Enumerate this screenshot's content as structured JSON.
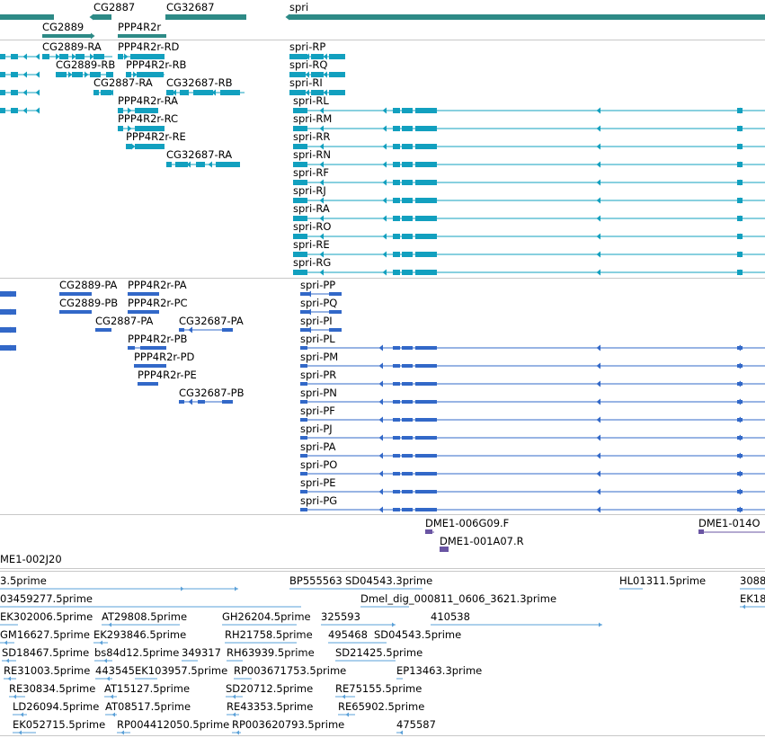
{
  "colors": {
    "gene": "#2d8a86",
    "transcript": "#12a0bf",
    "protein": "#3268c8",
    "clone": "#6a55a3",
    "est": "#5aa0d8",
    "separator": "#c8c8c8"
  },
  "tracks": [
    {
      "name": "genes",
      "items": [
        {
          "label": "CG2889",
          "color": "gene"
        },
        {
          "label": "CG2887",
          "color": "gene"
        },
        {
          "label": "PPP4R2r",
          "color": "gene"
        },
        {
          "label": "CG32687",
          "color": "gene"
        },
        {
          "label": "spri",
          "color": "gene"
        }
      ]
    },
    {
      "name": "transcripts",
      "items": [
        {
          "label": "CG2889-RA"
        },
        {
          "label": "CG2889-RB"
        },
        {
          "label": "CG2887-RA"
        },
        {
          "label": "PPP4R2r-RD"
        },
        {
          "label": "PPP4R2r-RB"
        },
        {
          "label": "PPP4R2r-RA"
        },
        {
          "label": "PPP4R2r-RC"
        },
        {
          "label": "PPP4R2r-RE"
        },
        {
          "label": "CG32687-RB"
        },
        {
          "label": "CG32687-RA"
        },
        {
          "label": "spri-RP"
        },
        {
          "label": "spri-RQ"
        },
        {
          "label": "spri-RI"
        },
        {
          "label": "spri-RL"
        },
        {
          "label": "spri-RM"
        },
        {
          "label": "spri-RR"
        },
        {
          "label": "spri-RN"
        },
        {
          "label": "spri-RF"
        },
        {
          "label": "spri-RJ"
        },
        {
          "label": "spri-RA"
        },
        {
          "label": "spri-RO"
        },
        {
          "label": "spri-RE"
        },
        {
          "label": "spri-RG"
        }
      ]
    },
    {
      "name": "proteins",
      "items": [
        {
          "label": "CG2889-PA"
        },
        {
          "label": "CG2889-PB"
        },
        {
          "label": "CG2887-PA"
        },
        {
          "label": "PPP4R2r-PA"
        },
        {
          "label": "PPP4R2r-PC"
        },
        {
          "label": "PPP4R2r-PB"
        },
        {
          "label": "PPP4R2r-PD"
        },
        {
          "label": "PPP4R2r-PE"
        },
        {
          "label": "CG32687-PA"
        },
        {
          "label": "CG32687-PB"
        },
        {
          "label": "spri-PP"
        },
        {
          "label": "spri-PQ"
        },
        {
          "label": "spri-PI"
        },
        {
          "label": "spri-PL"
        },
        {
          "label": "spri-PM"
        },
        {
          "label": "spri-PR"
        },
        {
          "label": "spri-PN"
        },
        {
          "label": "spri-PF"
        },
        {
          "label": "spri-PJ"
        },
        {
          "label": "spri-PA"
        },
        {
          "label": "spri-PO"
        },
        {
          "label": "spri-PE"
        },
        {
          "label": "spri-PG"
        }
      ]
    },
    {
      "name": "clones",
      "items": [
        {
          "label": "DME1-006G09.F"
        },
        {
          "label": "DME1-014O"
        },
        {
          "label": "DME1-001A07.R"
        },
        {
          "label": "ME1-002J20"
        }
      ]
    },
    {
      "name": "ests",
      "items": [
        {
          "label": "3.5prime"
        },
        {
          "label": "BP555563"
        },
        {
          "label": "SD04543.3prime"
        },
        {
          "label": "HL01311.5prime"
        },
        {
          "label": "3088"
        },
        {
          "label": "03459277.5prime"
        },
        {
          "label": "Dmel_dig_000811_0606_3621.3prime"
        },
        {
          "label": "EK18"
        },
        {
          "label": "EK302006.5prime"
        },
        {
          "label": "AT29808.5prime"
        },
        {
          "label": "GH26204.5prime"
        },
        {
          "label": "325593"
        },
        {
          "label": "410538"
        },
        {
          "label": "GM16627.5prime"
        },
        {
          "label": "EK293846.5prime"
        },
        {
          "label": "RH21758.5prime"
        },
        {
          "label": "495468"
        },
        {
          "label": "SD04543.5prime"
        },
        {
          "label": "SD18467.5prime"
        },
        {
          "label": "bs84d12.5prime"
        },
        {
          "label": "349317"
        },
        {
          "label": "RH63939.5prime"
        },
        {
          "label": "SD21425.5prime"
        },
        {
          "label": "RE31003.5prime"
        },
        {
          "label": "443545"
        },
        {
          "label": "EK103957.5prime"
        },
        {
          "label": "RP003671753.5prime"
        },
        {
          "label": "EP13463.3prime"
        },
        {
          "label": "RE30834.5prime"
        },
        {
          "label": "AT15127.5prime"
        },
        {
          "label": "SD20712.5prime"
        },
        {
          "label": "RE75155.5prime"
        },
        {
          "label": "LD26094.5prime"
        },
        {
          "label": "AT08517.5prime"
        },
        {
          "label": "RE43353.5prime"
        },
        {
          "label": "RE65902.5prime"
        },
        {
          "label": "EK052715.5prime"
        },
        {
          "label": "RP004412050.5prime"
        },
        {
          "label": "RP003620793.5prime"
        },
        {
          "label": "475587"
        }
      ]
    }
  ]
}
